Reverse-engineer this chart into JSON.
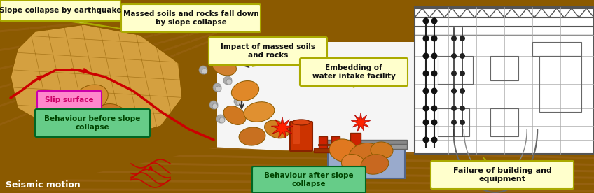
{
  "figsize": [
    8.48,
    2.76
  ],
  "dpi": 100,
  "ground_color": "#8B5A00",
  "ground_stripe_color": "#7a4f00",
  "slope_tan": "#c8a050",
  "white_area": "#f5f5f5",
  "slip_color": "#cc0000",
  "rock_orange": "#e07820",
  "rock_tan": "#c8902a",
  "grey_rock": "#aaaaaa",
  "tank_red": "#cc2200",
  "tank_dark": "#992200",
  "equip_red": "#cc3300",
  "building_bg": "#e8e8e8",
  "building_line": "#555555",
  "pit_blue": "#99aacc",
  "pit_wall": "#888888",
  "star_red": "#ff2200",
  "label_yellow_bg": "#ffffcc",
  "label_yellow_border": "#aaaa00",
  "label_green_bg": "#66cc88",
  "label_green_border": "#006622",
  "label_pink_bg": "#ff88cc",
  "label_pink_border": "#cc00aa",
  "seismic_red": "#cc0000",
  "text_dark_green": "#004400",
  "text_pink": "#cc0066",
  "text_black": "#111111",
  "text_white": "#ffffff",
  "slope_collapse_label": "Slope collapse by earthquake",
  "massed_soils_label": "Massed soils and rocks fall down\nby slope collapse",
  "impact_label": "Impact of massed soils\nand rocks",
  "embedding_label": "Embedding of\nwater intake facility",
  "slip_label": "Slip surface",
  "beh_before_label": "Behaviour before slope\ncollapse",
  "beh_after_label": "Behaviour after slope\ncollapse",
  "seismic_label": "Seismic motion",
  "failure_label": "Failure of building and\nequipment"
}
